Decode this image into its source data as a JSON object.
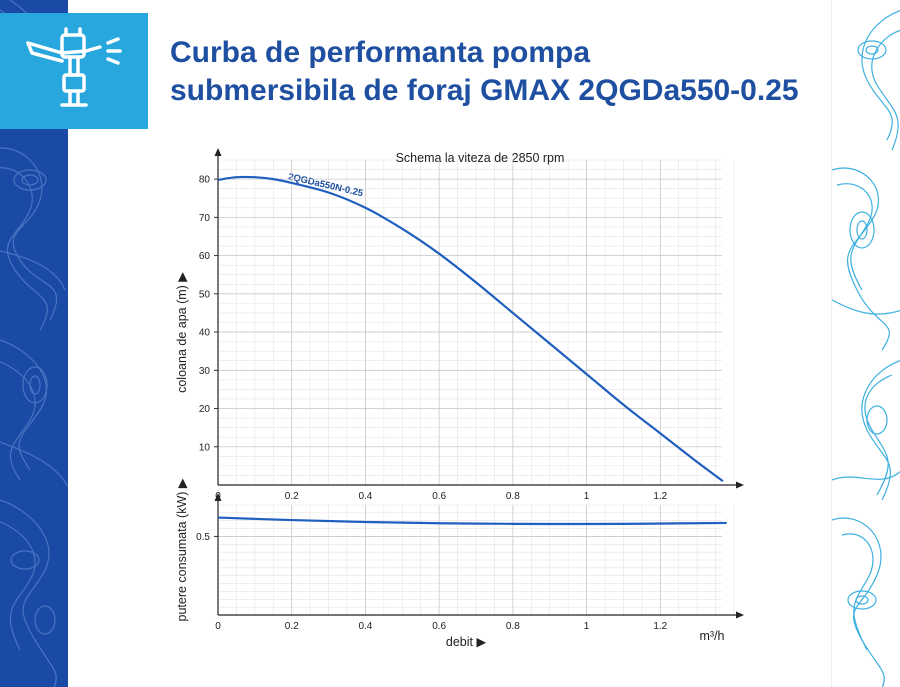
{
  "page": {
    "title_lines": [
      "Curba de performanta pompa",
      "submersibila de foraj GMAX 2QGDa550-0.25"
    ],
    "logo_icon": "sprinkler-icon",
    "colors": {
      "left_band": "#1b4aa6",
      "logo_bg": "#27a7de",
      "title": "#1e4fa0",
      "curve": "#1f5fbf",
      "contour_right": "#29a8dd"
    }
  },
  "chart_data": [
    {
      "type": "line",
      "title": "Schema la viteza de 2850 rpm",
      "ylabel": "coloana de apa (m) ▶",
      "xlim": [
        0,
        1.4
      ],
      "ylim": [
        0,
        85
      ],
      "x_ticks": [
        "0",
        "0.2",
        "0.4",
        "0.6",
        "0.8",
        "1",
        "1.2"
      ],
      "y_ticks": [
        "10",
        "20",
        "30",
        "40",
        "50",
        "60",
        "70",
        "80"
      ],
      "grid": true,
      "series": [
        {
          "name": "2QGDa550N-0.25",
          "x": [
            0,
            0.05,
            0.1,
            0.15,
            0.2,
            0.3,
            0.4,
            0.5,
            0.6,
            0.7,
            0.8,
            0.9,
            1.0,
            1.1,
            1.2,
            1.3,
            1.37
          ],
          "y": [
            79.8,
            80.5,
            80.5,
            80.0,
            79.0,
            76.5,
            72.5,
            67.0,
            60.5,
            53.0,
            45.0,
            37.0,
            29.0,
            21.0,
            13.5,
            6.0,
            1.0
          ]
        }
      ]
    },
    {
      "type": "line",
      "ylabel": "putere consumata (kW) ▶",
      "xlabel": "debit ▶",
      "x_unit": "m³/h",
      "xlim": [
        0,
        1.4
      ],
      "ylim": [
        0,
        0.7
      ],
      "x_ticks": [
        "0",
        "0.2",
        "0.4",
        "0.6",
        "0.8",
        "1",
        "1.2"
      ],
      "y_ticks": [
        "0.5"
      ],
      "grid": true,
      "series": [
        {
          "x": [
            0,
            0.2,
            0.4,
            0.6,
            0.8,
            0.95,
            1.1,
            1.25,
            1.38
          ],
          "y": [
            0.62,
            0.604,
            0.592,
            0.584,
            0.58,
            0.579,
            0.58,
            0.583,
            0.586
          ]
        }
      ]
    }
  ]
}
